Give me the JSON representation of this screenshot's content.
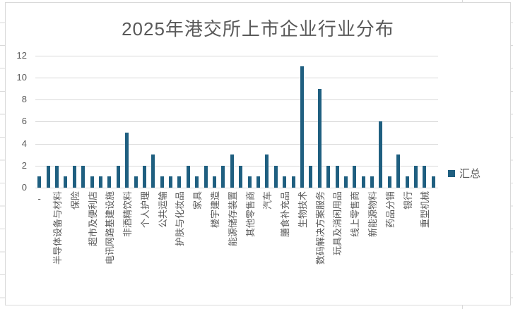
{
  "title": "2025年港交所上市企业行业分布",
  "legend": {
    "series_label": "汇总"
  },
  "colors": {
    "bar": "#1F5F80",
    "gridline": "#D9D9D9",
    "border": "#D9D9D9",
    "text": "#595959",
    "background": "#FFFFFF"
  },
  "chart_data": {
    "type": "bar",
    "title": "2025年港交所上市企业行业分布",
    "series": [
      {
        "name": "汇总",
        "values": [
          1,
          2,
          2,
          1,
          2,
          2,
          1,
          1,
          1,
          2,
          5,
          1,
          2,
          3,
          1,
          1,
          1,
          2,
          1,
          2,
          1,
          2,
          3,
          2,
          1,
          1,
          3,
          2,
          1,
          1,
          11,
          2,
          9,
          2,
          2,
          1,
          2,
          1,
          1,
          6,
          1,
          3,
          1,
          2,
          2,
          1
        ]
      }
    ],
    "n_bars": 46,
    "x_label_step": 2,
    "x_labels_visible": [
      "-",
      "半导体设备与材料",
      "保险",
      "超市及便利店",
      "电讯网路基建设施",
      "非酒精饮料",
      "个人护理",
      "公共运输",
      "护肤与化妆品",
      "家具",
      "楼宇建造",
      "能源储存装置",
      "其他零售商",
      "汽车",
      "膳食补充品",
      "生物技术",
      "数码解决方案服务",
      "玩具及消闲用品",
      "线上零售商",
      "新能源物料",
      "药品分销",
      "银行",
      "重型机械"
    ],
    "ylim": [
      0,
      12
    ],
    "yticks": [
      0,
      2,
      4,
      6,
      8,
      10,
      12
    ],
    "grid": true,
    "legend_position": "right"
  }
}
